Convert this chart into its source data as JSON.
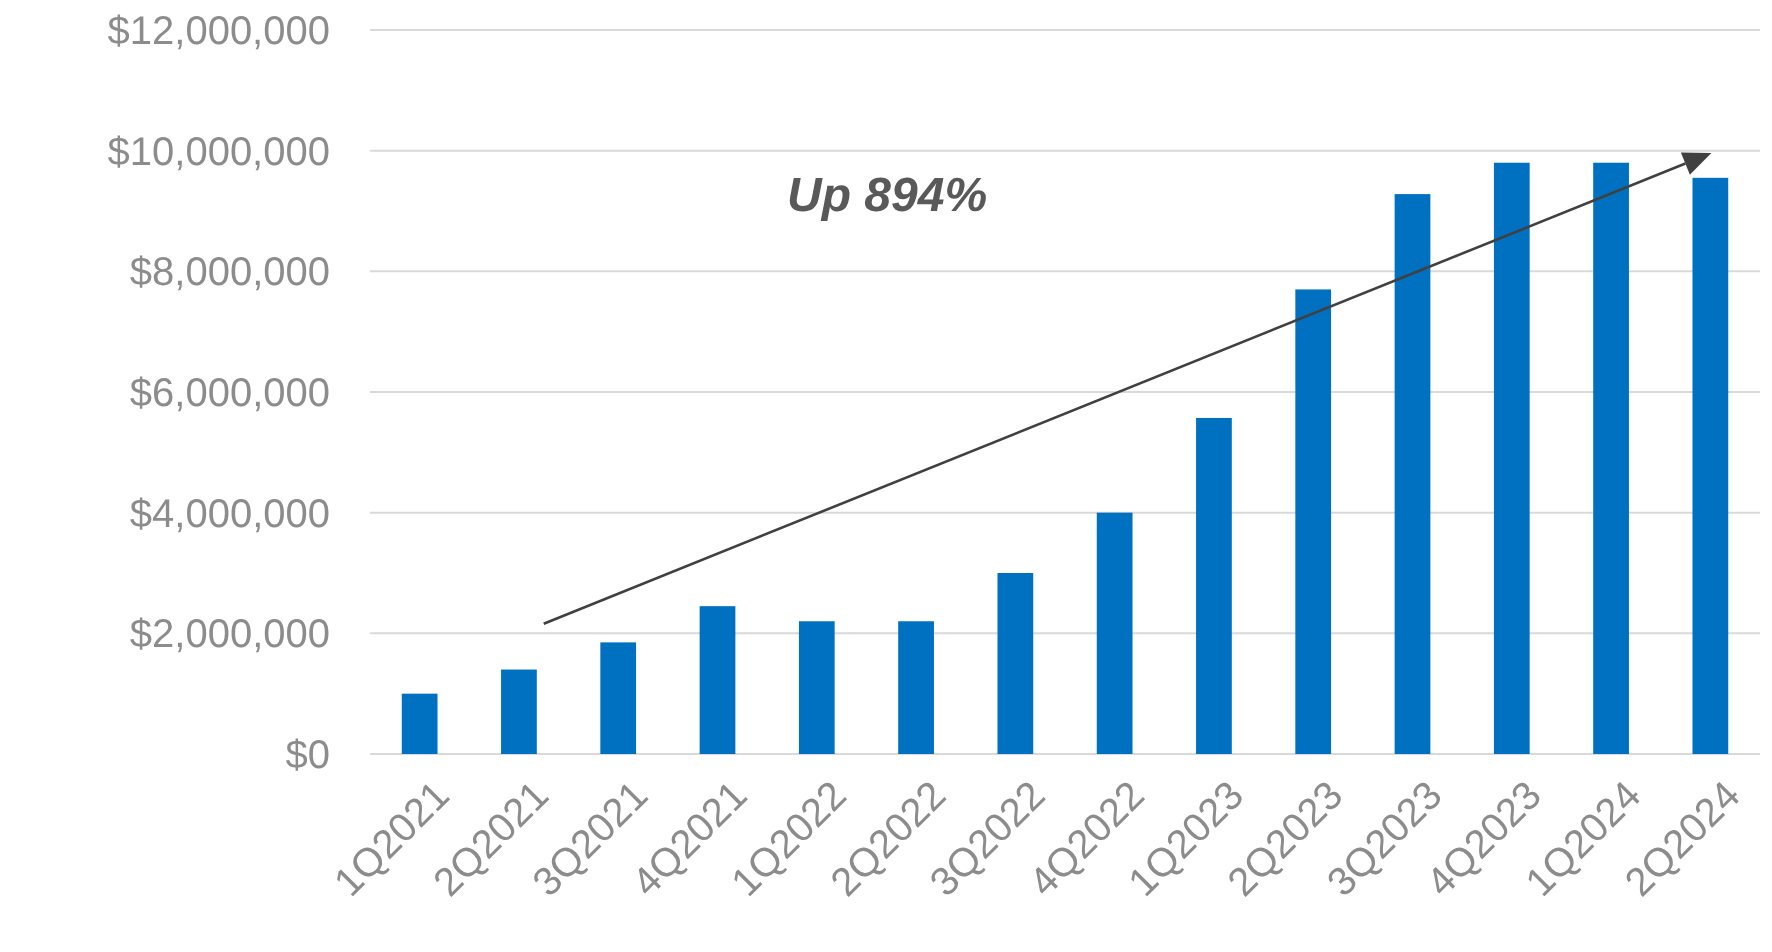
{
  "chart_data": {
    "type": "bar",
    "categories": [
      "1Q2021",
      "2Q2021",
      "3Q2021",
      "4Q2021",
      "1Q2022",
      "2Q2022",
      "3Q2022",
      "4Q2022",
      "1Q2023",
      "2Q2023",
      "3Q2023",
      "4Q2023",
      "1Q2024",
      "2Q2024"
    ],
    "values": [
      1000000,
      1400000,
      1850000,
      2450000,
      2200000,
      2200000,
      3000000,
      4000000,
      5570000,
      7700000,
      9280000,
      9800000,
      9800000,
      9550000
    ],
    "color": "#0070c0",
    "ylim": [
      0,
      12000000
    ],
    "yticks": [
      {
        "value": 0,
        "label": "$0"
      },
      {
        "value": 2000000,
        "label": "$2,000,000"
      },
      {
        "value": 4000000,
        "label": "$4,000,000"
      },
      {
        "value": 6000000,
        "label": "$6,000,000"
      },
      {
        "value": 8000000,
        "label": "$8,000,000"
      },
      {
        "value": 10000000,
        "label": "$10,000,000"
      },
      {
        "value": 12000000,
        "label": "$12,000,000"
      }
    ],
    "grid": "y",
    "annotations": [
      "Up 894%"
    ]
  }
}
